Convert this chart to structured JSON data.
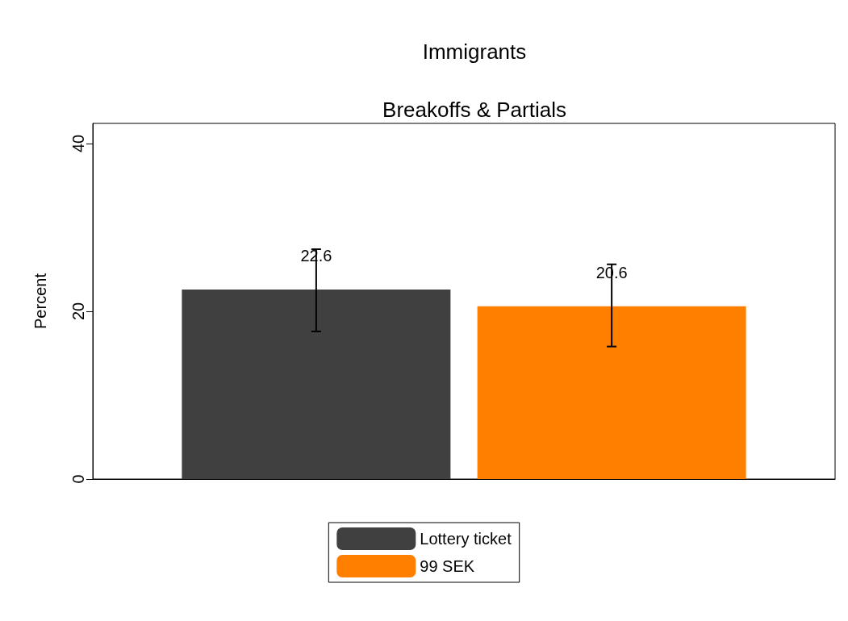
{
  "chart_data": {
    "type": "bar",
    "title": "Immigrants",
    "subtitle": "Breakoffs & Partials",
    "ylabel": "Percent",
    "categories": [
      null
    ],
    "series": [
      {
        "name": "Lottery ticket",
        "color": "#404040",
        "values": [
          22.6
        ],
        "errors": [
          [
            17.6,
            27.4
          ]
        ]
      },
      {
        "name": "99 SEK",
        "color": "#ff7f00",
        "values": [
          20.6
        ],
        "errors": [
          [
            15.8,
            25.6
          ]
        ]
      }
    ],
    "ylim": [
      0,
      42.4
    ],
    "yticks": [
      0,
      20,
      40
    ],
    "grid": false,
    "legend": "bottom",
    "data_labels": true
  }
}
